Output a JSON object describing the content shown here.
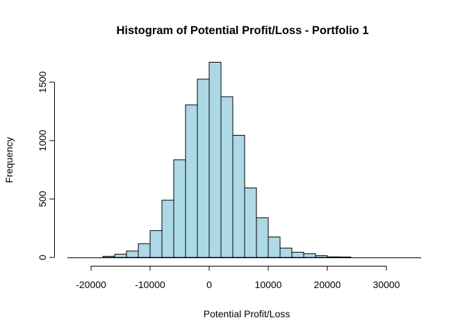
{
  "chart_data": {
    "type": "bar",
    "title": "Histogram of Potential Profit/Loss - Portfolio 1",
    "xlabel": "Potential Profit/Loss",
    "ylabel": "Frequency",
    "bin_width": 2000,
    "bins": [
      {
        "start": -18000,
        "end": -16000,
        "count": 10
      },
      {
        "start": -16000,
        "end": -14000,
        "count": 28
      },
      {
        "start": -14000,
        "end": -12000,
        "count": 55
      },
      {
        "start": -12000,
        "end": -10000,
        "count": 118
      },
      {
        "start": -10000,
        "end": -8000,
        "count": 230
      },
      {
        "start": -8000,
        "end": -6000,
        "count": 490
      },
      {
        "start": -6000,
        "end": -4000,
        "count": 835
      },
      {
        "start": -4000,
        "end": -2000,
        "count": 1305
      },
      {
        "start": -2000,
        "end": 0,
        "count": 1525
      },
      {
        "start": 0,
        "end": 2000,
        "count": 1670
      },
      {
        "start": 2000,
        "end": 4000,
        "count": 1375
      },
      {
        "start": 4000,
        "end": 6000,
        "count": 1045
      },
      {
        "start": 6000,
        "end": 8000,
        "count": 595
      },
      {
        "start": 8000,
        "end": 10000,
        "count": 340
      },
      {
        "start": 10000,
        "end": 12000,
        "count": 175
      },
      {
        "start": 12000,
        "end": 14000,
        "count": 80
      },
      {
        "start": 14000,
        "end": 16000,
        "count": 45
      },
      {
        "start": 16000,
        "end": 18000,
        "count": 32
      },
      {
        "start": 18000,
        "end": 20000,
        "count": 15
      },
      {
        "start": 20000,
        "end": 22000,
        "count": 5
      },
      {
        "start": 22000,
        "end": 24000,
        "count": 4
      }
    ],
    "x_ticks": [
      -20000,
      -10000,
      0,
      10000,
      20000,
      30000
    ],
    "x_tick_labels": [
      "-20000",
      "-10000",
      "0",
      "10000",
      "20000",
      "30000"
    ],
    "y_ticks": [
      0,
      500,
      1000,
      1500
    ],
    "y_tick_labels": [
      "0",
      "500",
      "1000",
      "1500"
    ],
    "xlim": [
      -24000,
      36000
    ],
    "ylim": [
      0,
      1700
    ],
    "grid": false,
    "colors": {
      "bar_fill": "#add8e6",
      "bar_stroke": "#000000"
    }
  }
}
